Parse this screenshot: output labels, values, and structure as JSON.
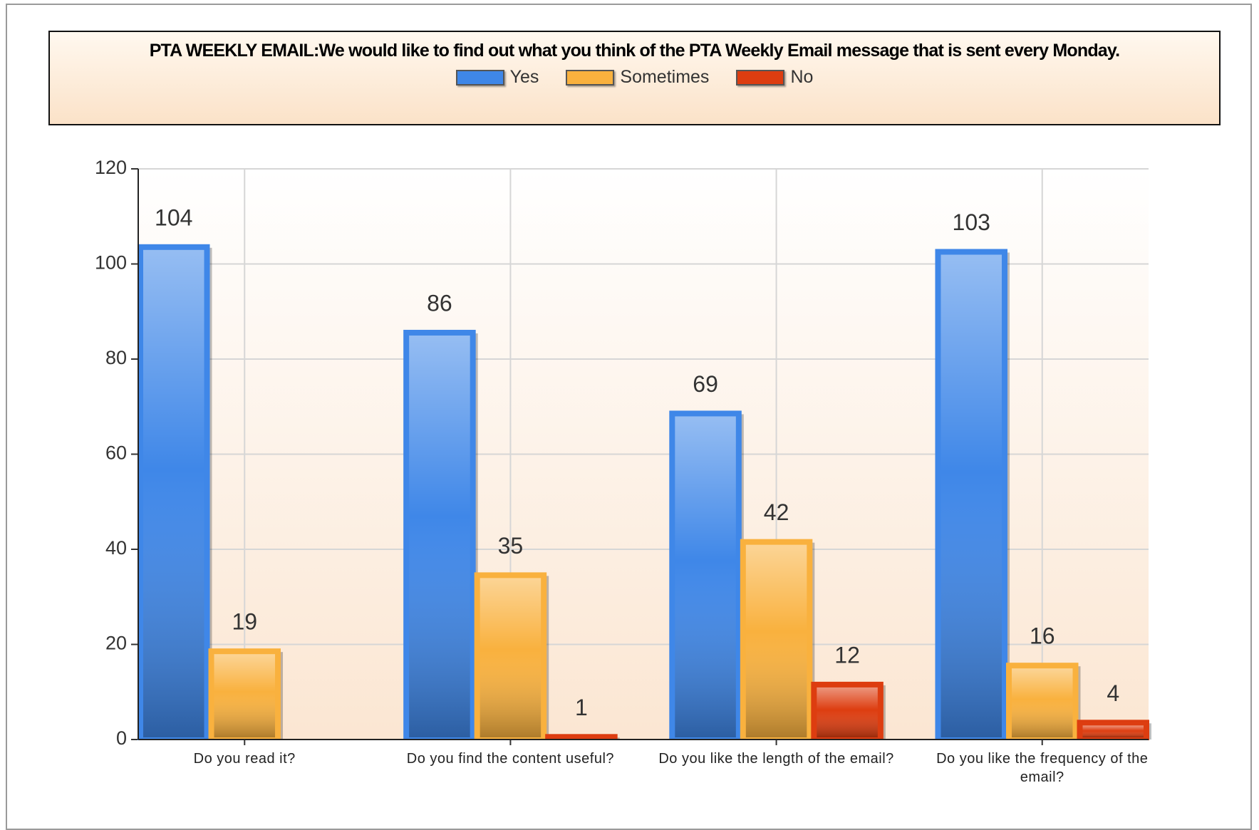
{
  "chart_data": {
    "type": "bar",
    "title": "PTA WEEKLY EMAIL:We would like to find out what you think of the PTA Weekly Email message that is sent every Monday.",
    "categories": [
      "Do you read it?",
      "Do you find the content useful?",
      "Do you like the length of the email?",
      "Do you like the frequency of the email?"
    ],
    "series": [
      {
        "name": "Yes",
        "color": "#3f87e8",
        "values": [
          104,
          86,
          69,
          103
        ]
      },
      {
        "name": "Sometimes",
        "color": "#f9b13e",
        "values": [
          19,
          35,
          42,
          16
        ]
      },
      {
        "name": "No",
        "color": "#dd3d10",
        "values": [
          null,
          1,
          12,
          4
        ]
      }
    ],
    "ylim": [
      0,
      120
    ],
    "yticks": [
      0,
      20,
      40,
      60,
      80,
      100,
      120
    ],
    "grid": true,
    "legend": "top"
  }
}
